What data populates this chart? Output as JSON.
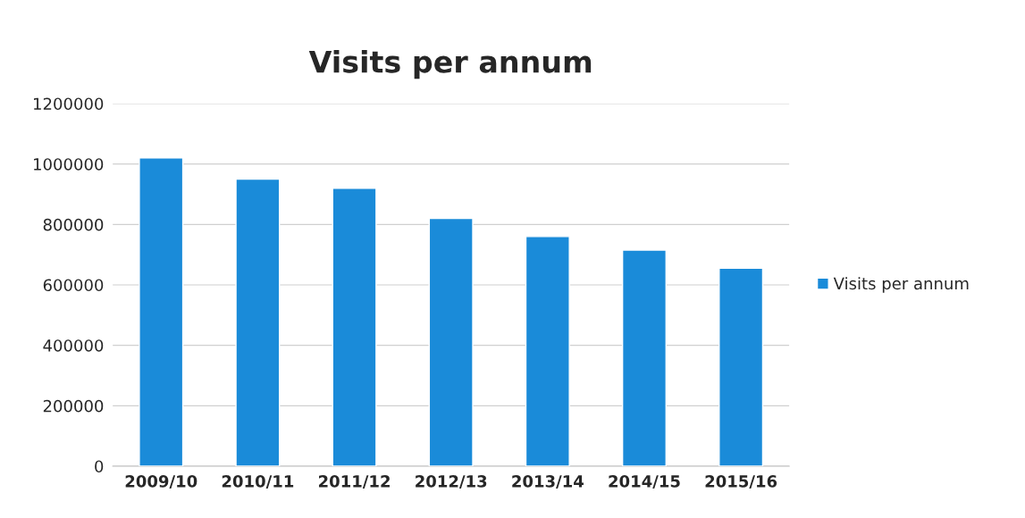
{
  "chart_data": {
    "type": "bar",
    "title": "Visits per annum",
    "categories": [
      "2009/10",
      "2010/11",
      "2011/12",
      "2012/13",
      "2013/14",
      "2014/15",
      "2015/16"
    ],
    "series": [
      {
        "name": "Visits per annum",
        "color": "#1a8bd9",
        "values": [
          1020000,
          950000,
          920000,
          820000,
          760000,
          715000,
          655000
        ]
      }
    ],
    "ylim": [
      0,
      1200000
    ],
    "yticks": [
      0,
      200000,
      400000,
      600000,
      800000,
      1000000,
      1200000
    ],
    "grid": "y",
    "legend": "right"
  }
}
